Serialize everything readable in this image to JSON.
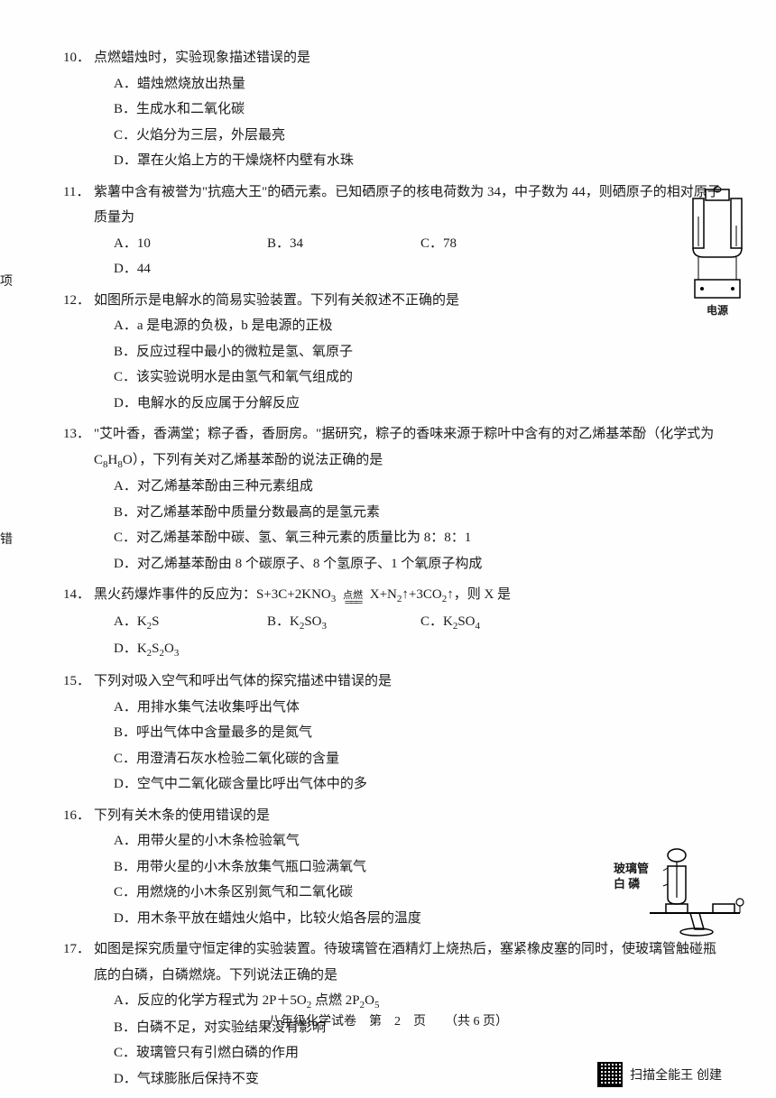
{
  "edge_labels": {
    "xiang": "项",
    "cuo": "错"
  },
  "questions": [
    {
      "num": "10．",
      "stem": "点燃蜡烛时，实验现象描述错误的是",
      "options": [
        "A．蜡烛燃烧放出热量",
        "B．生成水和二氧化碳",
        "C．火焰分为三层，外层最亮",
        "D．罩在火焰上方的干燥烧杯内壁有水珠"
      ],
      "layout": "block"
    },
    {
      "num": "11．",
      "stem": "紫薯中含有被誉为\"抗癌大王\"的硒元素。已知硒原子的核电荷数为 34，中子数为 44，则硒原子的相对原子质量为",
      "options": [
        "A．10",
        "B．34",
        "C．78",
        "D．44"
      ],
      "layout": "inline"
    },
    {
      "num": "12．",
      "stem": "如图所示是电解水的简易实验装置。下列有关叙述不正确的是",
      "options": [
        "A．a 是电源的负极，b 是电源的正极",
        "B．反应过程中最小的微粒是氢、氧原子",
        "C．该实验说明水是由氢气和氧气组成的",
        "D．电解水的反应属于分解反应"
      ],
      "layout": "block"
    },
    {
      "num": "13．",
      "stem_html": "\"艾叶香，香满堂；粽子香，香厨房。\"据研究，粽子的香味来源于粽叶中含有的对乙烯基苯酚（化学式为 C<span class='sub'>8</span>H<span class='sub'>8</span>O），下列有关对乙烯基苯酚的说法正确的是",
      "options": [
        "A．对乙烯基苯酚由三种元素组成",
        "B．对乙烯基苯酚中质量分数最高的是氢元素",
        "C．对乙烯基苯酚中碳、氢、氧三种元素的质量比为 8：8：1",
        "D．对乙烯基苯酚由 8 个碳原子、8 个氢原子、1 个氧原子构成"
      ],
      "layout": "block"
    },
    {
      "num": "14．",
      "stem_html": "黑火药爆炸事件的反应为：S+3C+2KNO<span class='sub'>3</span> <span class='reaction-arrow'>点燃</span> X+N<span class='sub'>2</span>↑+3CO<span class='sub'>2</span>↑，则 X 是",
      "options_html": [
        "A．K<span class='sub'>2</span>S",
        "B．K<span class='sub'>2</span>SO<span class='sub'>3</span>",
        "C．K<span class='sub'>2</span>SO<span class='sub'>4</span>",
        "D．K<span class='sub'>2</span>S<span class='sub'>2</span>O<span class='sub'>3</span>"
      ],
      "layout": "inline"
    },
    {
      "num": "15．",
      "stem": "下列对吸入空气和呼出气体的探究描述中错误的是",
      "options": [
        "A．用排水集气法收集呼出气体",
        "B．呼出气体中含量最多的是氮气",
        "C．用澄清石灰水检验二氧化碳的含量",
        "D．空气中二氧化碳含量比呼出气体中的多"
      ],
      "layout": "block"
    },
    {
      "num": "16．",
      "stem": "下列有关木条的使用错误的是",
      "options": [
        "A．用带火星的小木条检验氧气",
        "B．用带火星的小木条放集气瓶口验满氧气",
        "C．用燃烧的小木条区别氮气和二氧化碳",
        "D．用木条平放在蜡烛火焰中，比较火焰各层的温度"
      ],
      "layout": "block"
    },
    {
      "num": "17．",
      "stem": "如图是探究质量守恒定律的实验装置。待玻璃管在酒精灯上烧热后，塞紧橡皮塞的同时，使玻璃管触碰瓶底的白磷，白磷燃烧。下列说法正确的是",
      "options_html": [
        "A．反应的化学方程式为 2P＋5O<span class='sub'>2</span> 点燃 2P<span class='sub'>2</span>O<span class='sub'>5</span>",
        "B．白磷不足，对实验结果没有影响",
        "C．玻璃管只有引燃白磷的作用",
        "D．气球膨胀后保持不变"
      ],
      "layout": "block"
    }
  ],
  "figures": {
    "electrolysis_label": "电源",
    "balance_label1": "玻璃管",
    "balance_label2": "白 磷"
  },
  "footer": {
    "text": "八年级化学试卷　第　2　页　　（共 6 页）"
  },
  "scan": {
    "text": "扫描全能王  创建"
  }
}
